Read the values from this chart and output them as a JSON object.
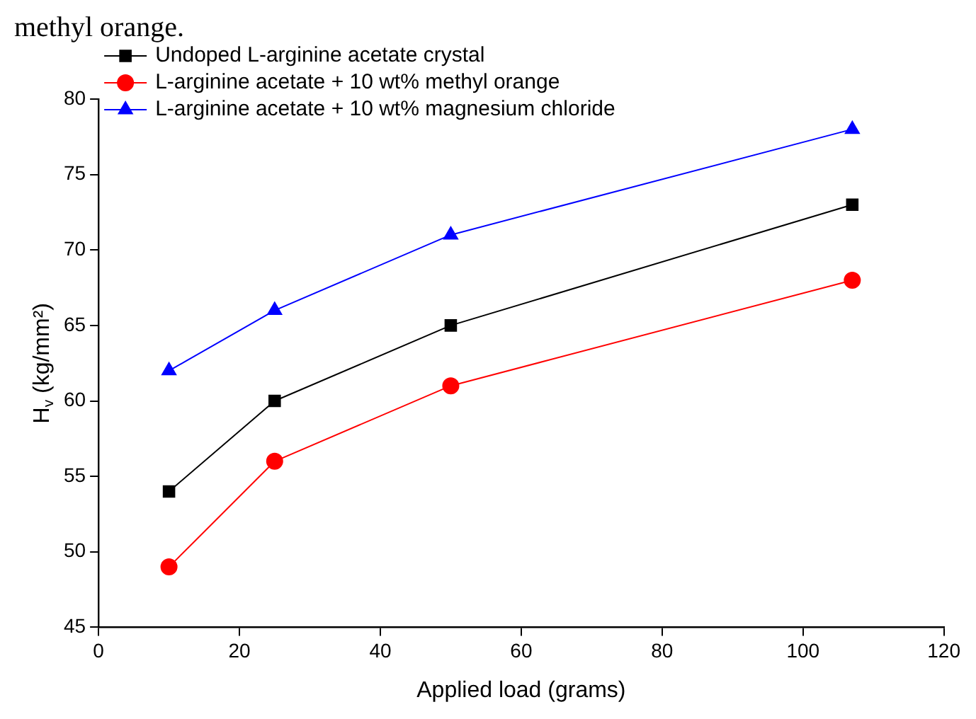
{
  "chart_data": {
    "type": "line",
    "xlabel": "Applied load (grams)",
    "ylabel": "H$_{v}$ (kg/mm²)",
    "annotations": [
      "methyl orange."
    ],
    "x": [
      10,
      25,
      50,
      107
    ],
    "series": [
      {
        "name": "Undoped L-arginine acetate crystal",
        "color": "#000000",
        "marker": "square",
        "values": [
          54,
          60,
          65,
          73
        ]
      },
      {
        "name": "L-arginine acetate + 10 wt% methyl orange",
        "color": "#ff0000",
        "marker": "circle",
        "values": [
          49,
          56,
          61,
          68
        ]
      },
      {
        "name": "L-arginine acetate + 10 wt% magnesium chloride",
        "color": "#0000ff",
        "marker": "triangle",
        "values": [
          62,
          66,
          71,
          78
        ]
      }
    ],
    "xlim": [
      0,
      120
    ],
    "xticks": [
      0,
      20,
      40,
      60,
      80,
      100,
      120
    ],
    "ylim": [
      45,
      80
    ],
    "yticks": [
      45,
      50,
      55,
      60,
      65,
      70,
      75,
      80
    ],
    "grid": false,
    "legend": "top left",
    "line_style": "solid"
  }
}
